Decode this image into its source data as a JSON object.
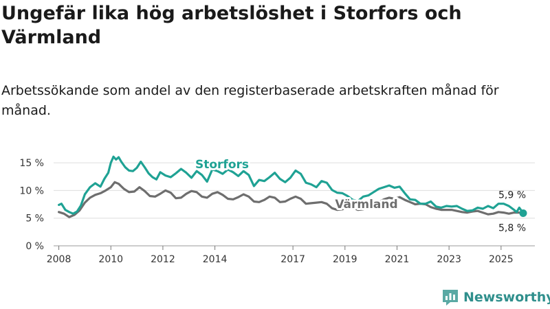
{
  "title": "Ungefär lika hög arbetslöshet i Storfors och Värmland",
  "subtitle": "Arbetssökande som andel av den registerbaserade arbetskraften månad för månad.",
  "brand": "Newsworthy",
  "colors": {
    "storfors": "#1fa294",
    "varmland": "#6e6e6e",
    "grid": "#dddddd"
  },
  "chart_data": {
    "type": "line",
    "title": "Ungefär lika hög arbetslöshet i Storfors och Värmland",
    "xlabel": "",
    "ylabel": "",
    "ylim": [
      0,
      16.5
    ],
    "xlim": [
      2007.8,
      2026.3
    ],
    "yticks": [
      0,
      5,
      10,
      15
    ],
    "ytick_labels": [
      "0 %",
      "5 %",
      "10 %",
      "15 %"
    ],
    "xticks": [
      2008,
      2010,
      2012,
      2014,
      2017,
      2019,
      2021,
      2023,
      2025
    ],
    "xtick_labels": [
      "2008",
      "2010",
      "2012",
      "2014",
      "2017",
      "2019",
      "2021",
      "2023",
      "2025"
    ],
    "series": [
      {
        "name": "Storfors",
        "label": "Storfors",
        "end_label": "5,9 %",
        "x": [
          2008.0,
          2008.1,
          2008.25,
          2008.4,
          2008.55,
          2008.7,
          2008.85,
          2009.0,
          2009.2,
          2009.4,
          2009.6,
          2009.75,
          2009.9,
          2010.0,
          2010.1,
          2010.2,
          2010.3,
          2010.4,
          2010.55,
          2010.7,
          2010.85,
          2011.0,
          2011.15,
          2011.3,
          2011.45,
          2011.6,
          2011.75,
          2011.9,
          2012.1,
          2012.3,
          2012.5,
          2012.7,
          2012.9,
          2013.1,
          2013.3,
          2013.5,
          2013.7,
          2013.9,
          2014.1,
          2014.3,
          2014.5,
          2014.7,
          2014.9,
          2015.1,
          2015.3,
          2015.5,
          2015.7,
          2015.9,
          2016.1,
          2016.3,
          2016.5,
          2016.7,
          2016.9,
          2017.1,
          2017.3,
          2017.5,
          2017.7,
          2017.9,
          2018.1,
          2018.3,
          2018.5,
          2018.7,
          2018.9,
          2019.1,
          2019.3,
          2019.5,
          2019.7,
          2019.9,
          2020.1,
          2020.3,
          2020.5,
          2020.7,
          2020.9,
          2021.1,
          2021.3,
          2021.5,
          2021.7,
          2021.9,
          2022.1,
          2022.3,
          2022.5,
          2022.7,
          2022.9,
          2023.1,
          2023.3,
          2023.5,
          2023.7,
          2023.9,
          2024.1,
          2024.3,
          2024.5,
          2024.7,
          2024.9,
          2025.1,
          2025.3,
          2025.5,
          2025.6,
          2025.7,
          2025.85
        ],
        "values": [
          7.4,
          7.6,
          6.5,
          6.1,
          5.8,
          6.2,
          7.3,
          9.3,
          10.6,
          11.3,
          10.7,
          12.1,
          13.2,
          15.0,
          16.1,
          15.6,
          16.0,
          15.2,
          14.2,
          13.6,
          13.5,
          14.1,
          15.2,
          14.2,
          13.1,
          12.4,
          12.0,
          13.3,
          12.7,
          12.4,
          13.1,
          13.9,
          13.2,
          12.3,
          13.5,
          12.8,
          11.6,
          13.8,
          13.5,
          13.0,
          13.8,
          13.3,
          12.6,
          13.5,
          12.8,
          10.8,
          11.9,
          11.7,
          12.4,
          13.2,
          12.1,
          11.5,
          12.3,
          13.6,
          13.0,
          11.4,
          11.1,
          10.6,
          11.7,
          11.4,
          10.1,
          9.6,
          9.5,
          9.0,
          8.3,
          8.1,
          8.9,
          9.1,
          9.7,
          10.3,
          10.6,
          10.9,
          10.5,
          10.7,
          9.5,
          8.4,
          8.3,
          7.6,
          7.6,
          8.0,
          7.1,
          6.9,
          7.2,
          7.1,
          7.2,
          6.7,
          6.3,
          6.4,
          6.9,
          6.7,
          7.2,
          6.8,
          7.6,
          7.6,
          7.2,
          6.5,
          6.1,
          6.9,
          5.9
        ]
      },
      {
        "name": "Värmland",
        "label": "Värmland",
        "end_label": "5,8 %",
        "x": [
          2008.0,
          2008.2,
          2008.4,
          2008.6,
          2008.8,
          2009.0,
          2009.2,
          2009.4,
          2009.6,
          2009.8,
          2010.0,
          2010.15,
          2010.3,
          2010.5,
          2010.7,
          2010.9,
          2011.1,
          2011.3,
          2011.5,
          2011.7,
          2011.9,
          2012.1,
          2012.3,
          2012.5,
          2012.7,
          2012.9,
          2013.1,
          2013.3,
          2013.5,
          2013.7,
          2013.9,
          2014.1,
          2014.3,
          2014.5,
          2014.7,
          2014.9,
          2015.1,
          2015.3,
          2015.5,
          2015.7,
          2015.9,
          2016.1,
          2016.3,
          2016.5,
          2016.7,
          2016.9,
          2017.1,
          2017.3,
          2017.5,
          2017.7,
          2017.9,
          2018.1,
          2018.3,
          2018.5,
          2018.7,
          2018.9,
          2019.1,
          2019.3,
          2019.5,
          2019.7,
          2019.9,
          2020.1,
          2020.3,
          2020.5,
          2020.7,
          2020.9,
          2021.1,
          2021.3,
          2021.5,
          2021.7,
          2021.9,
          2022.1,
          2022.3,
          2022.5,
          2022.7,
          2022.9,
          2023.1,
          2023.3,
          2023.5,
          2023.7,
          2023.9,
          2024.1,
          2024.3,
          2024.5,
          2024.7,
          2024.9,
          2025.1,
          2025.3,
          2025.5,
          2025.7,
          2025.85
        ],
        "values": [
          6.1,
          5.8,
          5.2,
          5.6,
          6.4,
          7.8,
          8.7,
          9.2,
          9.5,
          10.0,
          10.6,
          11.5,
          11.2,
          10.3,
          9.7,
          9.8,
          10.6,
          9.9,
          9.0,
          8.9,
          9.4,
          10.0,
          9.6,
          8.6,
          8.7,
          9.4,
          9.9,
          9.7,
          8.9,
          8.7,
          9.4,
          9.7,
          9.2,
          8.5,
          8.4,
          8.8,
          9.3,
          8.9,
          8.0,
          7.9,
          8.3,
          8.9,
          8.7,
          7.9,
          8.0,
          8.5,
          8.9,
          8.5,
          7.6,
          7.7,
          7.8,
          7.9,
          7.6,
          6.8,
          6.5,
          6.6,
          7.0,
          6.9,
          6.5,
          6.6,
          7.0,
          7.3,
          7.9,
          8.4,
          8.7,
          8.5,
          8.8,
          8.3,
          7.9,
          7.5,
          7.6,
          7.5,
          7.0,
          6.7,
          6.5,
          6.5,
          6.5,
          6.3,
          6.1,
          6.0,
          6.2,
          6.3,
          6.0,
          5.7,
          5.8,
          6.1,
          6.0,
          5.8,
          6.0,
          6.0,
          5.8
        ]
      }
    ]
  }
}
